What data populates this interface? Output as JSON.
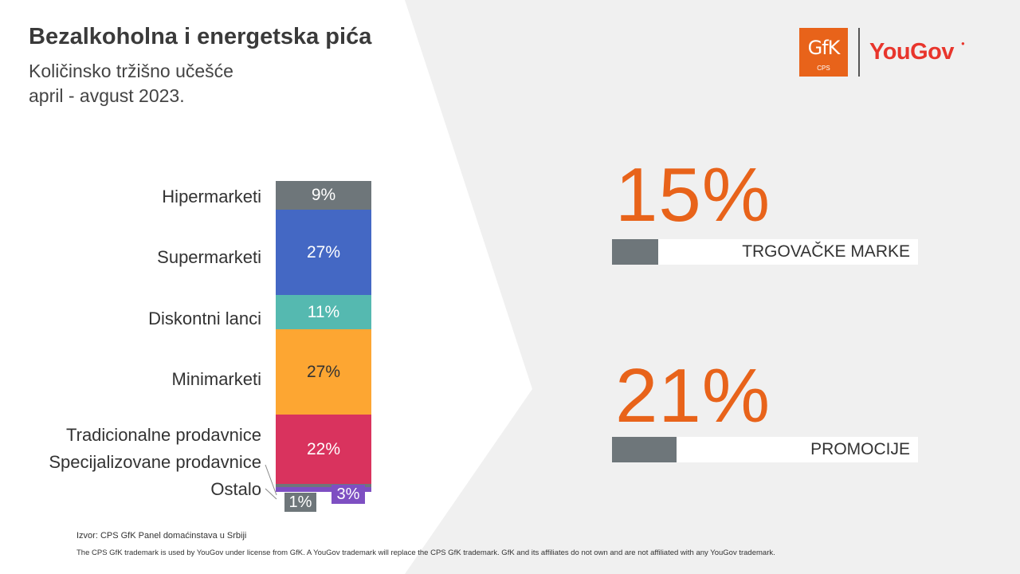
{
  "header": {
    "title": "Bezalkoholna i energetska pića",
    "subtitle_line1": "Količinsko tržišno učešće",
    "subtitle_line2": "april - avgust 2023."
  },
  "logos": {
    "gfk_text": "GfK",
    "gfk_sub": "CPS",
    "yougov_text": "YouGov"
  },
  "colors": {
    "accent_orange": "#e8631a",
    "yougov_red": "#e8352c",
    "background_gray": "#f0f0f0",
    "kpi_bar_gray": "#6e767a"
  },
  "chart_data": {
    "type": "bar",
    "stacked": true,
    "orientation": "vertical",
    "categories": [
      "Hipermarketi",
      "Supermarketi",
      "Diskontni lanci",
      "Minimarketi",
      "Tradicionalne prodavnice",
      "Specijalizovane prodavnice",
      "Ostalo"
    ],
    "values": [
      9,
      27,
      11,
      27,
      22,
      1,
      3
    ],
    "labels": [
      "9%",
      "27%",
      "11%",
      "27%",
      "22%",
      "1%",
      "3%"
    ],
    "colors": [
      "#6e767a",
      "#4468c4",
      "#55b9b0",
      "#fda632",
      "#d9335e",
      "#6e767a",
      "#7e4fc2"
    ],
    "unit": "%"
  },
  "kpis": [
    {
      "value": "15%",
      "fraction": 0.15,
      "label": "TRGOVAČKE MARKE"
    },
    {
      "value": "21%",
      "fraction": 0.21,
      "label": "PROMOCIJE"
    }
  ],
  "footer": {
    "source": "Izvor: CPS GfK Panel domaćinstava u Srbiji",
    "disclaimer": "The CPS GfK trademark is used by YouGov under license from GfK. A YouGov trademark will replace the CPS GfK trademark. GfK and its affiliates do not own and are not affiliated with any YouGov trademark."
  }
}
